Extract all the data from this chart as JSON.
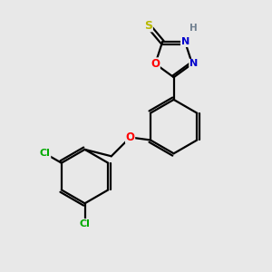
{
  "bg_color": "#e8e8e8",
  "bond_color": "#000000",
  "atom_colors": {
    "S": "#b8b800",
    "O": "#ff0000",
    "N": "#0000cc",
    "Cl": "#00aa00",
    "C": "#000000",
    "H": "#708090"
  },
  "line_width": 1.6,
  "dbo": 0.08
}
